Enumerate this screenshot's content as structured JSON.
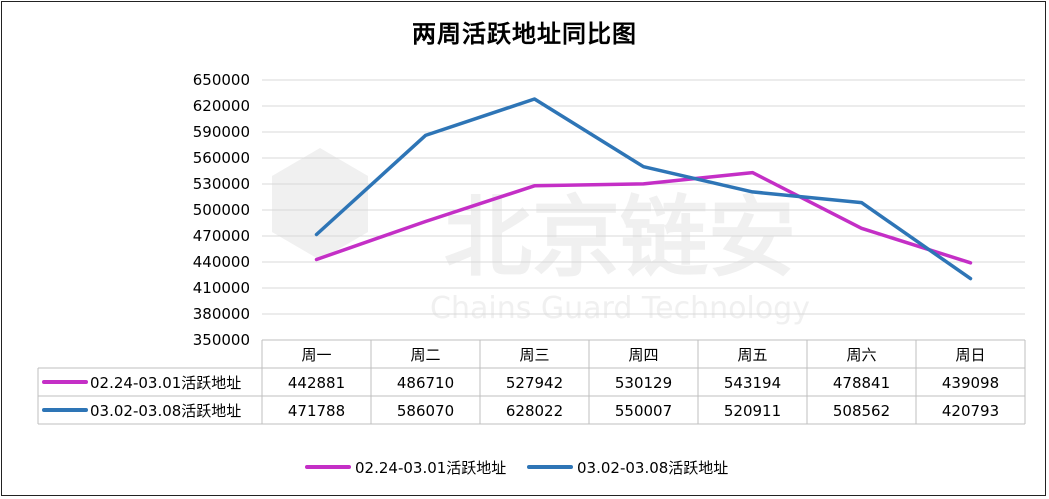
{
  "chart_data": {
    "type": "line",
    "title": "两周活跃地址同比图",
    "categories": [
      "周一",
      "周二",
      "周三",
      "周四",
      "周五",
      "周六",
      "周日"
    ],
    "ylim": [
      350000,
      650000
    ],
    "yticks": [
      350000,
      380000,
      410000,
      440000,
      470000,
      500000,
      530000,
      560000,
      590000,
      620000,
      650000
    ],
    "grid": true,
    "legend_position": "bottom",
    "series": [
      {
        "name": "02.24-03.01活跃地址",
        "color": "#C42FC6",
        "values": [
          442881,
          486710,
          527942,
          530129,
          543194,
          478841,
          439098
        ]
      },
      {
        "name": "03.02-03.08活跃地址",
        "color": "#2E75B6",
        "values": [
          471788,
          586070,
          628022,
          550007,
          520911,
          508562,
          420793
        ]
      }
    ]
  },
  "watermark": {
    "text": "北京链安",
    "subtext": "Chains Guard Technology"
  }
}
